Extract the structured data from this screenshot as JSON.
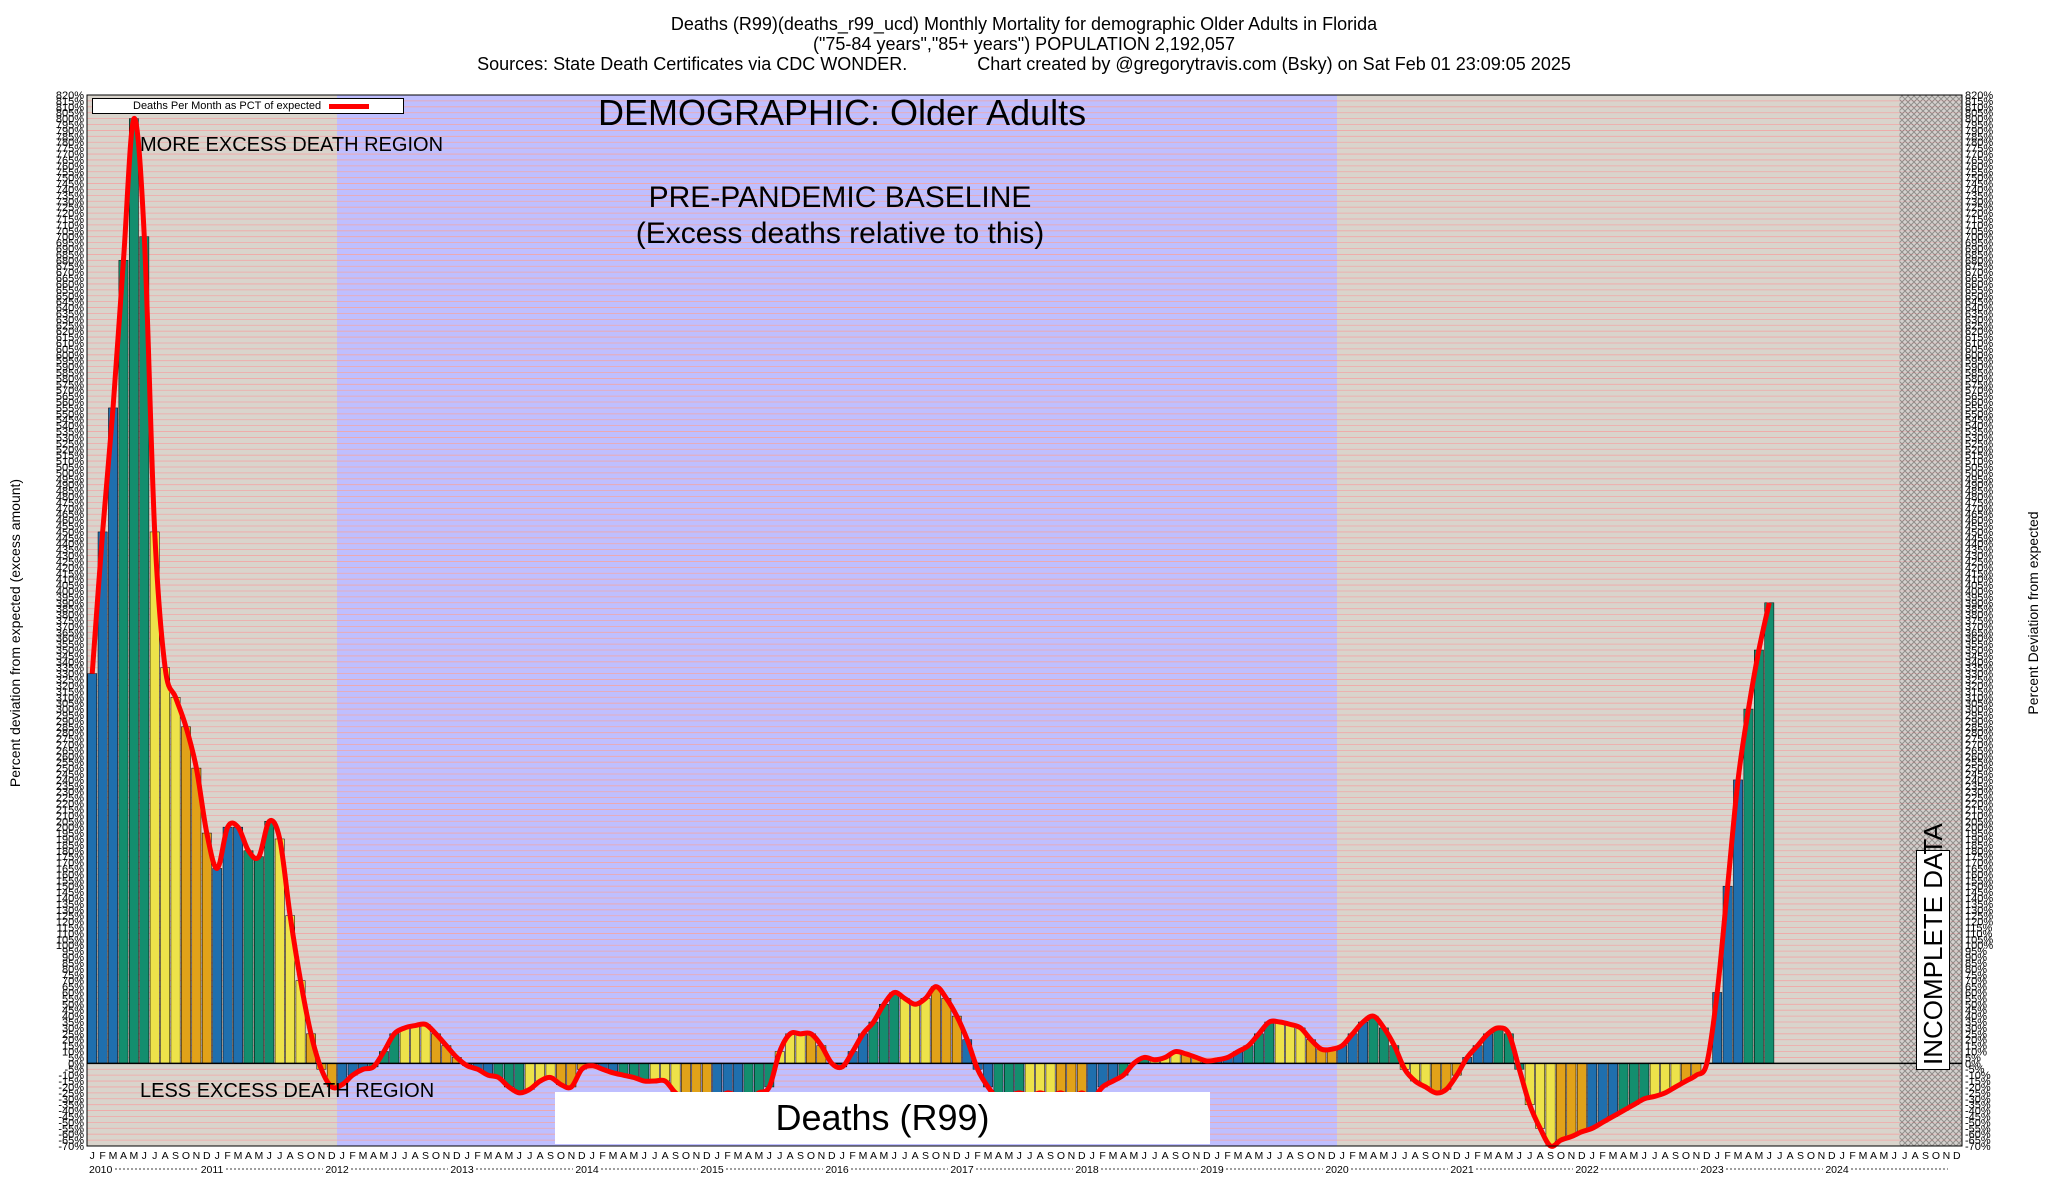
{
  "title": {
    "line1": "Deaths (R99)(deaths_r99_ucd) Monthly Mortality for demographic Older Adults in Florida",
    "line2": "(\"75-84 years\",\"85+ years\") POPULATION 2,192,057",
    "line3": "Sources: State Death Certificates via CDC WONDER.              Chart created by @gregorytravis.com (Bsky) on Sat Feb 01 23:09:05 2025"
  },
  "annotations": {
    "demographic": "DEMOGRAPHIC: Older Adults",
    "baseline_line1": "PRE-PANDEMIC BASELINE",
    "baseline_line2": "(Excess deaths relative to this)",
    "more_region": "MORE EXCESS DEATH REGION",
    "less_region": "LESS EXCESS DEATH REGION",
    "cause": "Deaths (R99)",
    "incomplete": "INCOMPLETE DATA"
  },
  "colors": {
    "line": "#ff0000",
    "bar_q1": "#1f6fae",
    "bar_q2": "#138e6e",
    "bar_q3": "#ede24a",
    "bar_q4": "#e1a219",
    "baseline_fill": "#bfbfff",
    "outer_fill": "#d9d4cc",
    "grid_line": "#f2a6a6"
  },
  "chart_data": {
    "type": "bar",
    "ylabel_left": "Percent deviation from expected (excess amount)",
    "ylabel_right": "Percent Deviation from expected",
    "ylim": [
      -70,
      820
    ],
    "ytick_step": 5,
    "grid": true,
    "legend": {
      "label": "Deaths Per Month as PCT of expected",
      "placement": "top-left"
    },
    "baseline_period": [
      "2012-01",
      "2019-12"
    ],
    "incomplete_period": [
      "2024-07",
      "2024-12"
    ],
    "month_letters": [
      "J",
      "F",
      "M",
      "A",
      "M",
      "J",
      "J",
      "A",
      "S",
      "O",
      "N",
      "D"
    ],
    "years": [
      "2010",
      "2011",
      "2012",
      "2013",
      "2014",
      "2015",
      "2016",
      "2017",
      "2018",
      "2019",
      "2020",
      "2021",
      "2022",
      "2023",
      "2024"
    ],
    "start": "2010-01",
    "values": [
      330,
      450,
      555,
      680,
      800,
      700,
      450,
      335,
      310,
      285,
      250,
      195,
      165,
      200,
      200,
      180,
      175,
      205,
      190,
      125,
      70,
      25,
      -5,
      -20,
      -18,
      -10,
      -5,
      -3,
      10,
      25,
      30,
      32,
      33,
      25,
      15,
      5,
      -2,
      -5,
      -10,
      -12,
      -20,
      -25,
      -22,
      -15,
      -12,
      -18,
      -20,
      -5,
      -2,
      -5,
      -8,
      -10,
      -12,
      -15,
      -15,
      -15,
      -25,
      -30,
      -30,
      -28,
      -30,
      -25,
      -28,
      -30,
      -25,
      -20,
      10,
      25,
      25,
      25,
      15,
      0,
      -3,
      10,
      25,
      35,
      50,
      60,
      55,
      50,
      55,
      65,
      55,
      40,
      20,
      -5,
      -20,
      -30,
      -28,
      -25,
      -28,
      -25,
      -28,
      -25,
      -30,
      -25,
      -30,
      -20,
      -15,
      -10,
      0,
      5,
      3,
      5,
      10,
      8,
      5,
      2,
      3,
      5,
      10,
      15,
      25,
      35,
      35,
      33,
      30,
      20,
      12,
      12,
      15,
      25,
      35,
      40,
      30,
      15,
      -5,
      -15,
      -20,
      -25,
      -22,
      -10,
      5,
      15,
      25,
      30,
      25,
      -5,
      -35,
      -55,
      -70,
      -65,
      -62,
      -58,
      -55,
      -50,
      -45,
      -40,
      -35,
      -30,
      -28,
      -25,
      -20,
      -15,
      -10,
      0,
      60,
      150,
      240,
      300,
      350,
      390
    ]
  }
}
